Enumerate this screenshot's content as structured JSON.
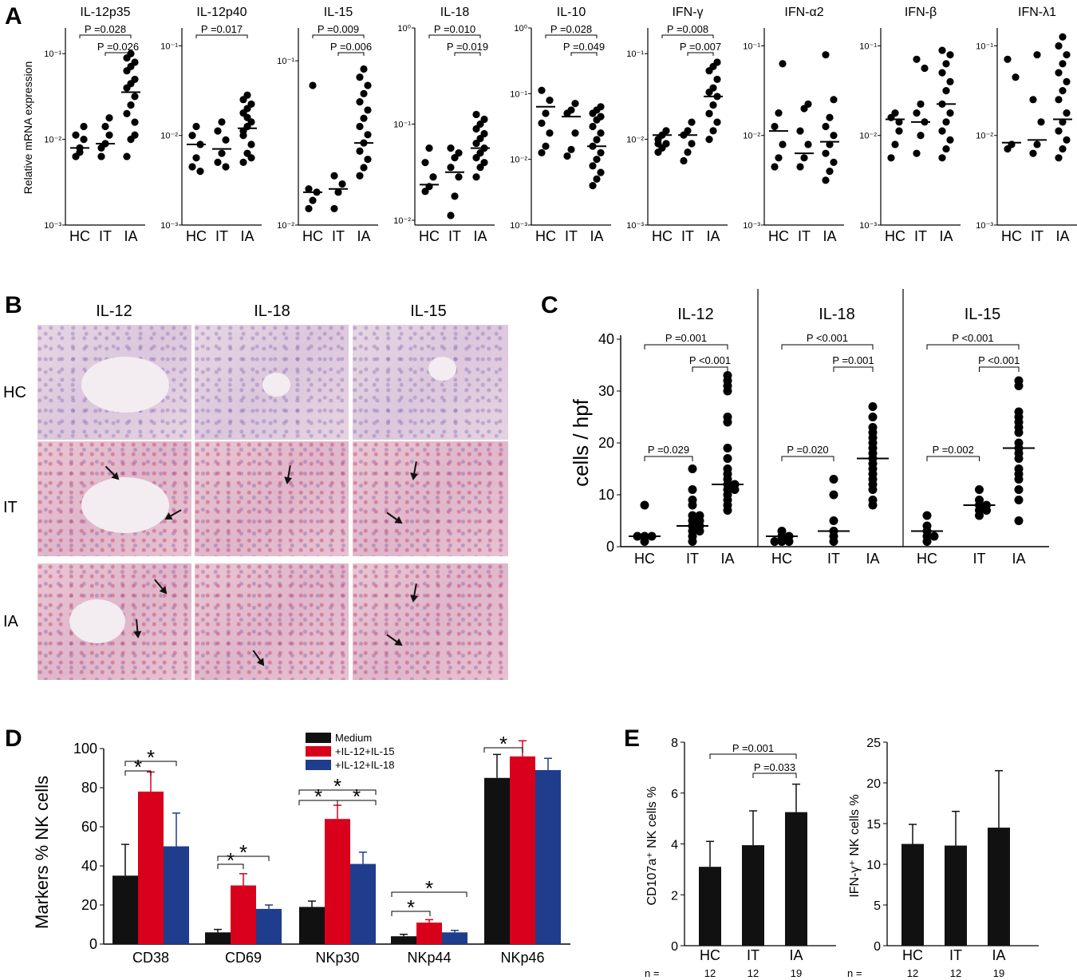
{
  "panels": {
    "A": {
      "letter": "A",
      "ylabel": "Relative mRNA expression",
      "groups": [
        "HC",
        "IT",
        "IA"
      ],
      "charts": [
        {
          "title": "IL-12p35",
          "ticks": [
            "10⁻¹",
            "10⁻²",
            "10⁻³"
          ],
          "ylim": [
            -3,
            -0.7
          ],
          "points": [
            [
              -2.2,
              -2.1,
              -2.0,
              -1.95,
              -2.15,
              -1.85
            ],
            [
              -2.2,
              -2.05,
              -1.95,
              -2.1,
              -1.85,
              -1.75
            ],
            [
              -2.2,
              -2.0,
              -1.8,
              -1.7,
              -1.6,
              -1.5,
              -1.4,
              -1.35,
              -1.3,
              -1.2,
              -1.15,
              -1.1,
              -1.05,
              -1.0,
              -1.95
            ]
          ],
          "medians": [
            -2.1,
            -2.05,
            -1.45
          ],
          "p": [
            {
              "label": "P =0.028",
              "a": 0,
              "b": 2
            },
            {
              "label": "P =0.026",
              "a": 1,
              "b": 2
            }
          ]
        },
        {
          "title": "IL-12p40",
          "ticks": [
            "10⁻¹",
            "10⁻²",
            "10⁻³"
          ],
          "ylim": [
            -3,
            -0.8
          ],
          "points": [
            [
              -2.35,
              -2.25,
              -2.1,
              -2.0,
              -1.9,
              -2.4
            ],
            [
              -2.3,
              -2.2,
              -2.05,
              -1.95,
              -1.85,
              -2.35
            ],
            [
              -2.3,
              -2.2,
              -2.1,
              -2.0,
              -1.9,
              -1.85,
              -1.75,
              -1.7,
              -1.65,
              -1.6,
              -1.55,
              -2.25,
              -1.95,
              -1.8
            ]
          ],
          "medians": [
            -2.1,
            -2.15,
            -1.92
          ],
          "p": [
            {
              "label": "P =0.017",
              "a": 0,
              "b": 2
            }
          ]
        },
        {
          "title": "IL-15",
          "ticks": [
            "10⁻¹",
            "10⁻²"
          ],
          "ylim": [
            -2,
            -0.8
          ],
          "points": [
            [
              -1.9,
              -1.85,
              -1.8,
              -1.78,
              -1.15
            ],
            [
              -1.9,
              -1.8,
              -1.75,
              -1.7
            ],
            [
              -1.7,
              -1.65,
              -1.6,
              -1.55,
              -1.5,
              -1.45,
              -1.4,
              -1.35,
              -1.3,
              -1.25,
              -1.2,
              -1.15,
              -1.1,
              -1.05
            ]
          ],
          "medians": [
            -1.8,
            -1.78,
            -1.5
          ],
          "p": [
            {
              "label": "P =0.009",
              "a": 0,
              "b": 2
            },
            {
              "label": "P =0.006",
              "a": 1,
              "b": 2
            }
          ]
        },
        {
          "title": "IL-18",
          "ticks": [
            "10⁰",
            "10⁻¹",
            "10⁻²"
          ],
          "ylim": [
            -2.05,
            0
          ],
          "points": [
            [
              -1.7,
              -1.65,
              -1.55,
              -1.4,
              -1.25
            ],
            [
              -1.95,
              -1.75,
              -1.55,
              -1.45,
              -1.35,
              -1.3,
              -1.25
            ],
            [
              -1.55,
              -1.45,
              -1.4,
              -1.35,
              -1.3,
              -1.25,
              -1.2,
              -1.15,
              -1.1,
              -1.05,
              -1.0,
              -0.95,
              -0.9
            ]
          ],
          "medians": [
            -1.63,
            -1.5,
            -1.25
          ],
          "p": [
            {
              "label": "P =0.010",
              "a": 0,
              "b": 2
            },
            {
              "label": "P =0.019",
              "a": 1,
              "b": 2
            }
          ]
        },
        {
          "title": "IL-10",
          "ticks": [
            "10⁰",
            "10⁻¹",
            "10⁻²",
            "10⁻³"
          ],
          "ylim": [
            -3,
            0
          ],
          "points": [
            [
              -1.9,
              -1.8,
              -1.6,
              -1.45,
              -1.3,
              -1.1,
              -0.95
            ],
            [
              -1.95,
              -1.85,
              -1.6,
              -1.3,
              -1.25,
              -1.15
            ],
            [
              -2.4,
              -2.3,
              -2.2,
              -2.1,
              -2.0,
              -1.9,
              -1.8,
              -1.7,
              -1.6,
              -1.5,
              -1.4,
              -1.35,
              -1.3,
              -1.25,
              -1.2
            ]
          ],
          "medians": [
            -1.2,
            -1.35,
            -1.8
          ],
          "p": [
            {
              "label": "P =0.028",
              "a": 0,
              "b": 2
            },
            {
              "label": "P =0.049",
              "a": 1,
              "b": 2
            }
          ]
        },
        {
          "title": "IFN-γ",
          "ticks": [
            "10⁻¹",
            "10⁻²",
            "10⁻³"
          ],
          "ylim": [
            -3,
            -0.7
          ],
          "points": [
            [
              -2.15,
              -2.1,
              -2.05,
              -2.0,
              -1.95,
              -1.9,
              -2.05
            ],
            [
              -2.25,
              -2.15,
              -2.05,
              -1.95,
              -1.9,
              -1.8
            ],
            [
              -2.0,
              -1.9,
              -1.8,
              -1.7,
              -1.6,
              -1.5,
              -1.45,
              -1.4,
              -1.3,
              -1.2,
              -1.15,
              -1.1,
              -1.7
            ]
          ],
          "medians": [
            -1.95,
            -1.95,
            -1.5
          ],
          "p": [
            {
              "label": "P =0.008",
              "a": 0,
              "b": 2
            },
            {
              "label": "P =0.007",
              "a": 1,
              "b": 2
            }
          ]
        },
        {
          "title": "IFN-α2",
          "ticks": [
            "10⁻¹",
            "10⁻²",
            "10⁻³"
          ],
          "ylim": [
            -3,
            -0.8
          ],
          "points": [
            [
              -2.35,
              -2.25,
              -2.1,
              -1.9,
              -1.75,
              -1.2
            ],
            [
              -2.35,
              -2.25,
              -2.1,
              -1.95,
              -1.7,
              -1.65
            ],
            [
              -2.5,
              -2.4,
              -2.3,
              -2.2,
              -2.1,
              -2.0,
              -1.9,
              -1.8,
              -1.6,
              -1.1
            ]
          ],
          "medians": [
            -1.95,
            -2.2,
            -2.07
          ],
          "p": []
        },
        {
          "title": "IFN-β",
          "ticks": [
            "10⁻¹",
            "10⁻²",
            "10⁻³"
          ],
          "ylim": [
            -3,
            -0.8
          ],
          "points": [
            [
              -2.25,
              -2.1,
              -1.95,
              -1.8,
              -1.75,
              -1.85
            ],
            [
              -2.2,
              -2.0,
              -1.85,
              -1.75,
              -1.65,
              -1.25,
              -1.15
            ],
            [
              -2.25,
              -2.15,
              -2.05,
              -1.95,
              -1.85,
              -1.75,
              -1.65,
              -1.5,
              -1.4,
              -1.3,
              -1.2,
              -1.1,
              -1.05
            ]
          ],
          "medians": [
            -1.82,
            -1.85,
            -1.65
          ],
          "p": []
        },
        {
          "title": "IFN-λ1",
          "ticks": [
            "10⁻¹",
            "10⁻²",
            "10⁻³"
          ],
          "ylim": [
            -3,
            -0.8
          ],
          "points": [
            [
              -2.15,
              -2.1,
              -1.35,
              -1.15
            ],
            [
              -2.2,
              -2.1,
              -1.85,
              -1.6,
              -1.1
            ],
            [
              -2.25,
              -2.15,
              -2.05,
              -1.95,
              -1.85,
              -1.75,
              -1.6,
              -1.5,
              -1.4,
              -1.3,
              -1.2,
              -1.1,
              -1.0,
              -0.9
            ]
          ],
          "medians": [
            -2.08,
            -2.05,
            -1.82
          ],
          "p": []
        }
      ]
    },
    "B": {
      "letter": "B",
      "columns": [
        "IL-12",
        "IL-18",
        "IL-15"
      ],
      "rows": [
        "HC",
        "IT",
        "IA"
      ]
    },
    "C": {
      "letter": "C",
      "ylabel": "cells / hpf",
      "ticks": [
        "40",
        "30",
        "20",
        "10",
        "0"
      ],
      "groups": [
        "HC",
        "IT",
        "IA"
      ],
      "chart_data": {
        "type": "scatter",
        "ylim": [
          0,
          40
        ],
        "subpanels": [
          {
            "title": "IL-12",
            "points": [
              [
                1,
                2,
                2,
                2,
                8
              ],
              [
                1,
                2,
                3,
                3,
                4,
                4,
                5,
                5,
                6,
                6,
                8,
                9,
                11,
                15
              ],
              [
                7,
                8,
                9,
                10,
                11,
                11,
                12,
                12,
                13,
                14,
                15,
                17,
                19,
                24,
                25,
                30,
                31,
                32,
                33
              ]
            ],
            "medians": [
              2,
              4,
              12
            ],
            "p": [
              {
                "label": "P =0.029",
                "a": 0,
                "b": 1
              },
              {
                "label": "P =0.001",
                "a": 0,
                "b": 2
              },
              {
                "label": "P <0.001",
                "a": 1,
                "b": 2
              }
            ]
          },
          {
            "title": "IL-18",
            "points": [
              [
                1,
                1,
                1,
                2,
                2,
                3
              ],
              [
                1,
                2,
                3,
                5,
                10,
                13
              ],
              [
                8,
                9,
                11,
                12,
                13,
                14,
                15,
                16,
                17,
                18,
                19,
                20,
                21,
                22,
                23,
                25,
                27
              ]
            ],
            "medians": [
              2,
              3,
              17
            ],
            "p": [
              {
                "label": "P =0.020",
                "a": 0,
                "b": 1
              },
              {
                "label": "P <0.001",
                "a": 0,
                "b": 2
              },
              {
                "label": "P =0.001",
                "a": 1,
                "b": 2
              }
            ]
          },
          {
            "title": "IL-15",
            "points": [
              [
                1,
                2,
                2,
                3,
                4,
                6
              ],
              [
                6,
                7,
                7,
                8,
                8,
                9,
                11
              ],
              [
                5,
                9,
                11,
                13,
                14,
                15,
                17,
                18,
                19,
                20,
                22,
                23,
                24,
                25,
                26,
                31,
                32
              ]
            ],
            "medians": [
              3,
              8,
              19
            ],
            "p": [
              {
                "label": "P =0.002",
                "a": 0,
                "b": 1
              },
              {
                "label": "P <0.001",
                "a": 0,
                "b": 2
              },
              {
                "label": "P <0.001",
                "a": 1,
                "b": 2
              }
            ]
          }
        ]
      }
    },
    "D": {
      "letter": "D",
      "ylabel": "Markers % NK cells",
      "ticks": [
        "100",
        "80",
        "60",
        "40",
        "20",
        "0"
      ],
      "legend": [
        "Medium",
        "+IL-12+IL-15",
        "+IL-12+IL-18"
      ],
      "colors": [
        "#111111",
        "#d9001b",
        "#1f3d8c"
      ],
      "star": "*",
      "chart_data": {
        "type": "bar",
        "categories": [
          "CD38",
          "CD69",
          "NKp30",
          "NKp44",
          "NKp46"
        ],
        "ylim": [
          0,
          100
        ],
        "series": [
          {
            "name": "Medium",
            "values": [
              35,
              6,
              19,
              4,
              85
            ],
            "err": [
              16,
              1.5,
              3,
              1,
              12
            ]
          },
          {
            "name": "+IL-12+IL-15",
            "values": [
              78,
              30,
              64,
              11,
              96
            ],
            "err": [
              10,
              6,
              7,
              1.5,
              8
            ]
          },
          {
            "name": "+IL-12+IL-18",
            "values": [
              50,
              18,
              41,
              6,
              89
            ],
            "err": [
              17,
              2,
              6,
              1,
              6
            ]
          }
        ]
      }
    },
    "E": {
      "letter": "E",
      "n_label": "n =",
      "groups": [
        "HC",
        "IT",
        "IA"
      ],
      "n": [
        "12",
        "12",
        "19"
      ],
      "charts": [
        {
          "ylabel": "CD107a⁺ NK cells %",
          "ticks": [
            "8",
            "6",
            "4",
            "2",
            "0"
          ],
          "ylim": [
            0,
            8
          ],
          "values": [
            3.1,
            3.95,
            5.25
          ],
          "err": [
            1.0,
            1.35,
            1.1
          ],
          "p": [
            {
              "label": "P =0.001",
              "a": 0,
              "b": 2
            },
            {
              "label": "P =0.033",
              "a": 1,
              "b": 2
            }
          ]
        },
        {
          "ylabel": "IFN-γ⁺ NK cells %",
          "ticks": [
            "25",
            "20",
            "15",
            "10",
            "5",
            "0"
          ],
          "ylim": [
            0,
            25
          ],
          "values": [
            12.5,
            12.3,
            14.5
          ],
          "err": [
            2.4,
            4.2,
            7.0
          ],
          "p": []
        }
      ]
    }
  }
}
